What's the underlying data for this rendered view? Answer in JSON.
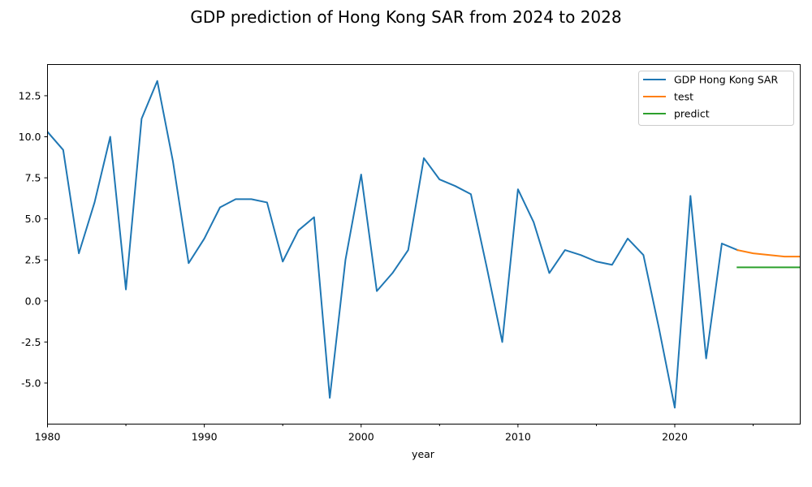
{
  "chart_data": {
    "type": "line",
    "title": "GDP prediction of Hong Kong SAR from 2024 to 2028",
    "xlabel": "year",
    "ylabel": "",
    "xlim": [
      1980,
      2028
    ],
    "ylim": [
      -7.5,
      14.4
    ],
    "x_ticks": [
      1980,
      1990,
      2000,
      2010,
      2020
    ],
    "x_ticks_minor": [
      1985,
      1995,
      2005,
      2015,
      2025
    ],
    "y_ticks": [
      -5.0,
      -2.5,
      0.0,
      2.5,
      5.0,
      7.5,
      10.0,
      12.5
    ],
    "grid": false,
    "legend_position": "top-right",
    "series": [
      {
        "name": "GDP Hong Kong SAR",
        "color": "#1f77b4",
        "x": [
          1980,
          1981,
          1982,
          1983,
          1984,
          1985,
          1986,
          1987,
          1988,
          1989,
          1990,
          1991,
          1992,
          1993,
          1994,
          1995,
          1996,
          1997,
          1998,
          1999,
          2000,
          2001,
          2002,
          2003,
          2004,
          2005,
          2006,
          2007,
          2008,
          2009,
          2010,
          2011,
          2012,
          2013,
          2014,
          2015,
          2016,
          2017,
          2018,
          2019,
          2020,
          2021,
          2022,
          2023,
          2024
        ],
        "values": [
          10.3,
          9.2,
          2.9,
          6.0,
          10.0,
          0.7,
          11.1,
          13.4,
          8.5,
          2.3,
          3.8,
          5.7,
          6.2,
          6.2,
          6.0,
          2.4,
          4.3,
          5.1,
          -5.9,
          2.5,
          7.7,
          0.6,
          1.7,
          3.1,
          8.7,
          7.4,
          7.0,
          6.5,
          2.1,
          -2.5,
          6.8,
          4.8,
          1.7,
          3.1,
          2.8,
          2.4,
          2.2,
          3.8,
          2.8,
          -1.7,
          -6.5,
          6.4,
          -3.5,
          3.5,
          3.1
        ]
      },
      {
        "name": "test",
        "color": "#ff7f0e",
        "x": [
          2024,
          2025,
          2026,
          2027,
          2028
        ],
        "values": [
          3.1,
          2.9,
          2.8,
          2.7,
          2.7
        ]
      },
      {
        "name": "predict",
        "color": "#2ca02c",
        "x": [
          2024,
          2025,
          2026,
          2027,
          2028
        ],
        "values": [
          2.05,
          2.05,
          2.05,
          2.05,
          2.05
        ]
      }
    ]
  }
}
